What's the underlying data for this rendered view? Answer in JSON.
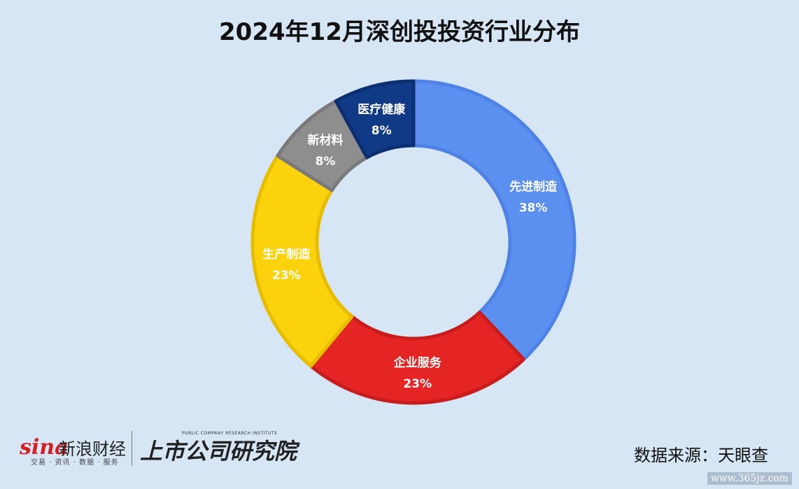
{
  "title": "2024年12月深创投投资行业分布",
  "chart_data": {
    "type": "pie",
    "title": "2024年12月深创投投资行业分布",
    "donut": true,
    "categories": [
      "先进制造",
      "企业服务",
      "生产制造",
      "新材料",
      "医疗健康"
    ],
    "values": [
      38,
      23,
      23,
      8,
      8
    ],
    "labels": [
      "38%",
      "23%",
      "23%",
      "8%",
      "8%"
    ],
    "colors": [
      "#5b8ff0",
      "#e42524",
      "#fbd20c",
      "#8e8e8e",
      "#103a86"
    ],
    "border_colors": [
      "#4f82e6",
      "#c91d1d",
      "#e6bd00",
      "#7a7a7a",
      "#0b2f70"
    ]
  },
  "footer": {
    "sina_logo": "sina",
    "sina_name": "新浪财经",
    "sina_sub": "交易 · 资讯 · 数据 · 服务",
    "institute_en": "PUBLIC COMPANY RESEARCH INSTITUTE",
    "institute_cn": "上市公司研究院",
    "source": "数据来源：天眼查",
    "watermark": "www.365jz.com"
  }
}
